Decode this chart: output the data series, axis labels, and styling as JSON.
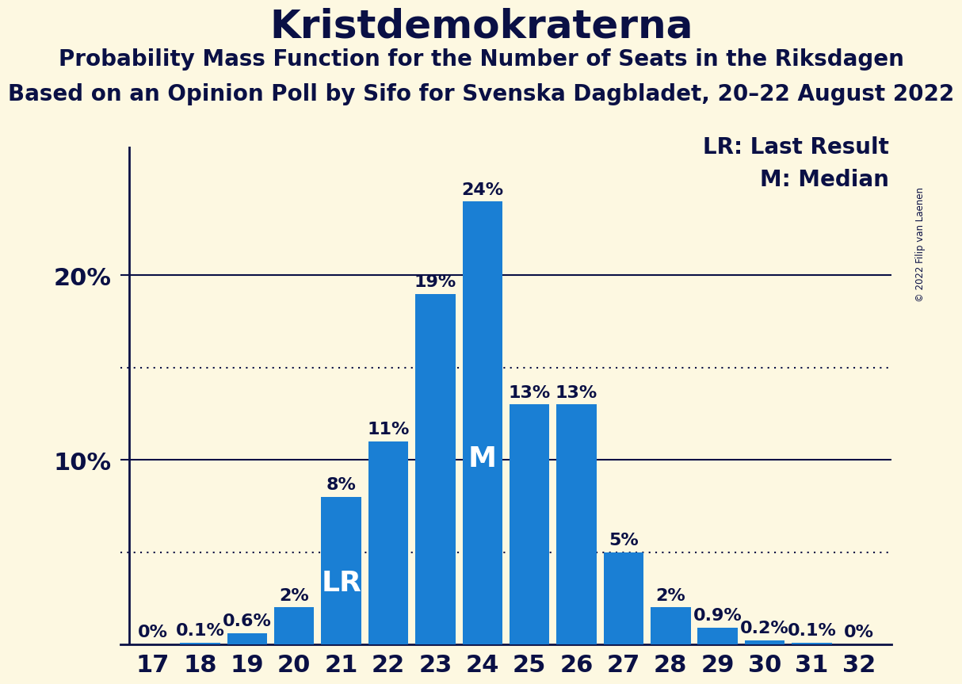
{
  "title": "Kristdemokraterna",
  "subtitle1": "Probability Mass Function for the Number of Seats in the Riksdagen",
  "subtitle2": "Based on an Opinion Poll by Sifo for Svenska Dagbladet, 20–22 August 2022",
  "copyright": "© 2022 Filip van Laenen",
  "seats": [
    17,
    18,
    19,
    20,
    21,
    22,
    23,
    24,
    25,
    26,
    27,
    28,
    29,
    30,
    31,
    32
  ],
  "probabilities": [
    0.0,
    0.1,
    0.6,
    2.0,
    8.0,
    11.0,
    19.0,
    24.0,
    13.0,
    13.0,
    5.0,
    2.0,
    0.9,
    0.2,
    0.1,
    0.0
  ],
  "labels": [
    "0%",
    "0.1%",
    "0.6%",
    "2%",
    "8%",
    "11%",
    "19%",
    "24%",
    "13%",
    "13%",
    "5%",
    "2%",
    "0.9%",
    "0.2%",
    "0.1%",
    "0%"
  ],
  "bar_color": "#1a7fd4",
  "background_color": "#fdf8e1",
  "axis_color": "#0a1045",
  "text_color": "#0a1045",
  "lr_seat": 21,
  "median_seat": 24,
  "lr_value": 8.0,
  "median_value": 24.0,
  "dotted_line_1": 15.0,
  "dotted_line_2": 5.0,
  "yticks": [
    10,
    20
  ],
  "ylim": [
    0,
    27
  ],
  "ylabel_fontsize": 22,
  "title_fontsize": 36,
  "subtitle_fontsize": 20,
  "bar_label_fontsize": 16,
  "tick_fontsize": 22,
  "legend_fontsize": 20,
  "lr_label_fontsize": 26,
  "m_label_fontsize": 26
}
